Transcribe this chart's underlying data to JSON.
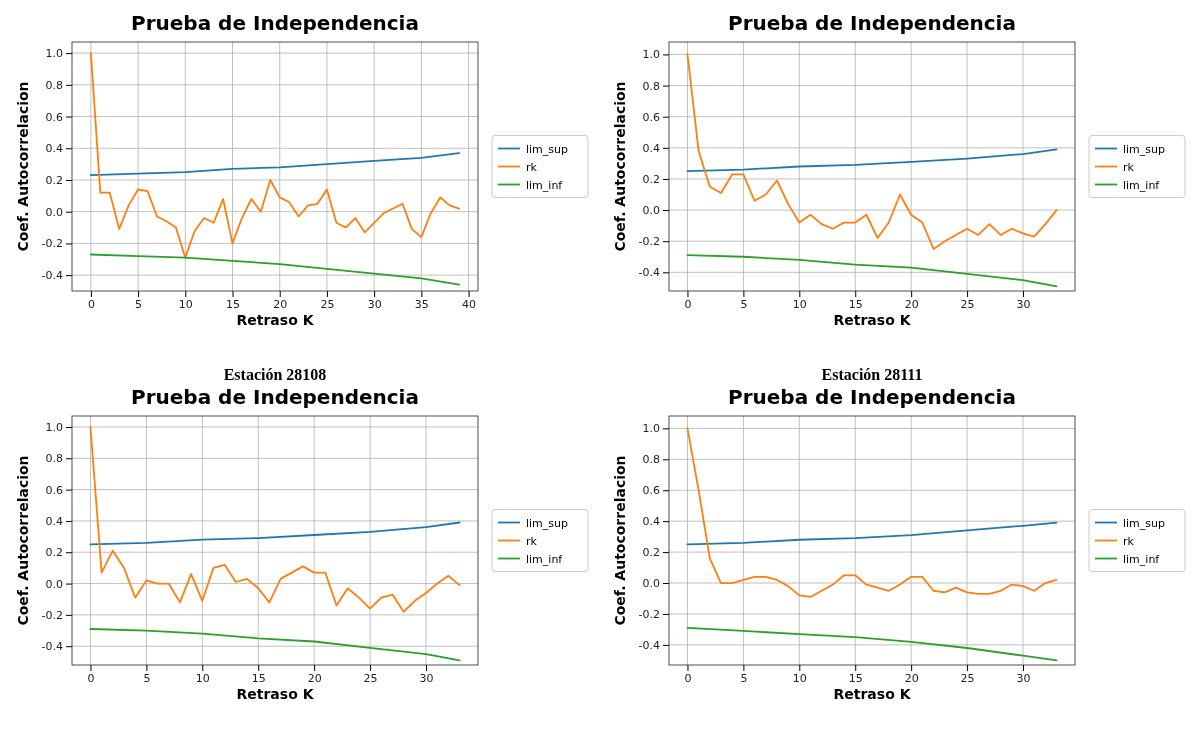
{
  "chart_data": [
    {
      "type": "line",
      "title": "Prueba de Independencia",
      "xlabel": "Retraso K",
      "ylabel": "Coef. Autocorrelacion",
      "xlim": [
        -2,
        41
      ],
      "xticks": [
        0,
        5,
        10,
        15,
        20,
        25,
        30,
        35,
        40
      ],
      "ylim": [
        -0.5,
        1.07
      ],
      "yticks": [
        {
          "value": -0.4,
          "label": "-0.4"
        },
        {
          "value": -0.2,
          "label": "-0.2"
        },
        {
          "value": 0,
          "label": "0.0"
        },
        {
          "value": 0.2,
          "label": "0.2"
        },
        {
          "value": 0.4,
          "label": "0.4"
        },
        {
          "value": 0.6,
          "label": "0.6"
        },
        {
          "value": 0.8,
          "label": "0.8"
        },
        {
          "value": 1,
          "label": "1.0"
        }
      ],
      "grid": true,
      "legend": "right",
      "line_style": "solid",
      "marker": "none",
      "series": [
        {
          "name": "lim_sup",
          "color": "#1f77b4",
          "x": [
            0,
            5,
            10,
            15,
            20,
            25,
            30,
            35,
            39
          ],
          "values": [
            0.23,
            0.24,
            0.25,
            0.27,
            0.28,
            0.3,
            0.32,
            0.34,
            0.37
          ]
        },
        {
          "name": "rk",
          "color": "#ff7f0e",
          "x": [
            0,
            1,
            2,
            3,
            4,
            5,
            6,
            7,
            8,
            9,
            10,
            11,
            12,
            13,
            14,
            15,
            16,
            17,
            18,
            19,
            20,
            21,
            22,
            23,
            24,
            25,
            26,
            27,
            28,
            29,
            30,
            31,
            32,
            33,
            34,
            35,
            36,
            37,
            38,
            39
          ],
          "values": [
            1.0,
            0.12,
            0.12,
            -0.11,
            0.04,
            0.14,
            0.13,
            -0.03,
            -0.06,
            -0.1,
            -0.29,
            -0.12,
            -0.04,
            -0.07,
            0.08,
            -0.2,
            -0.04,
            0.08,
            0.0,
            0.2,
            0.09,
            0.06,
            -0.03,
            0.04,
            0.05,
            0.14,
            -0.07,
            -0.1,
            -0.04,
            -0.13,
            -0.07,
            -0.01,
            0.02,
            0.05,
            -0.11,
            -0.16,
            -0.01,
            0.09,
            0.04,
            0.02
          ]
        },
        {
          "name": "lim_inf",
          "color": "#2ca02c",
          "x": [
            0,
            5,
            10,
            15,
            20,
            25,
            30,
            35,
            39
          ],
          "values": [
            -0.27,
            -0.28,
            -0.29,
            -0.31,
            -0.33,
            -0.36,
            -0.39,
            -0.42,
            -0.46
          ]
        }
      ]
    },
    {
      "type": "line",
      "title": "Prueba de Independencia",
      "xlabel": "Retraso K",
      "ylabel": "Coef. Autocorrelacion",
      "xlim": [
        -1.65,
        34.65
      ],
      "xticks": [
        0,
        5,
        10,
        15,
        20,
        25,
        30
      ],
      "ylim": [
        -0.52,
        1.08
      ],
      "yticks": [
        {
          "value": -0.4,
          "label": "-0.4"
        },
        {
          "value": -0.2,
          "label": "-0.2"
        },
        {
          "value": 0,
          "label": "0.0"
        },
        {
          "value": 0.2,
          "label": "0.2"
        },
        {
          "value": 0.4,
          "label": "0.4"
        },
        {
          "value": 0.6,
          "label": "0.6"
        },
        {
          "value": 0.8,
          "label": "0.8"
        },
        {
          "value": 1,
          "label": "1.0"
        }
      ],
      "grid": true,
      "legend": "right",
      "line_style": "solid",
      "marker": "none",
      "series": [
        {
          "name": "lim_sup",
          "color": "#1f77b4",
          "x": [
            0,
            5,
            10,
            15,
            20,
            25,
            30,
            33
          ],
          "values": [
            0.25,
            0.26,
            0.28,
            0.29,
            0.31,
            0.33,
            0.36,
            0.39
          ]
        },
        {
          "name": "rk",
          "color": "#ff7f0e",
          "x": [
            0,
            1,
            2,
            3,
            4,
            5,
            6,
            7,
            8,
            9,
            10,
            11,
            12,
            13,
            14,
            15,
            16,
            17,
            18,
            19,
            20,
            21,
            22,
            23,
            24,
            25,
            26,
            27,
            28,
            29,
            30,
            31,
            32,
            33
          ],
          "values": [
            1.0,
            0.38,
            0.15,
            0.11,
            0.23,
            0.23,
            0.06,
            0.1,
            0.19,
            0.04,
            -0.08,
            -0.03,
            -0.09,
            -0.12,
            -0.08,
            -0.08,
            -0.03,
            -0.18,
            -0.08,
            0.1,
            -0.03,
            -0.08,
            -0.25,
            -0.2,
            -0.16,
            -0.12,
            -0.16,
            -0.09,
            -0.16,
            -0.12,
            -0.15,
            -0.17,
            -0.09,
            0.0
          ]
        },
        {
          "name": "lim_inf",
          "color": "#2ca02c",
          "x": [
            0,
            5,
            10,
            15,
            20,
            25,
            30,
            33
          ],
          "values": [
            -0.29,
            -0.3,
            -0.32,
            -0.35,
            -0.37,
            -0.41,
            -0.45,
            -0.49
          ]
        }
      ]
    },
    {
      "type": "line",
      "title": "Prueba de Independencia",
      "annotations": [
        "Estación 28108"
      ],
      "xlabel": "Retraso K",
      "ylabel": "Coef. Autocorrelacion",
      "xlim": [
        -1.65,
        34.65
      ],
      "xticks": [
        0,
        5,
        10,
        15,
        20,
        25,
        30
      ],
      "ylim": [
        -0.52,
        1.07
      ],
      "yticks": [
        {
          "value": -0.4,
          "label": "-0.4"
        },
        {
          "value": -0.2,
          "label": "-0.2"
        },
        {
          "value": 0,
          "label": "0.0"
        },
        {
          "value": 0.2,
          "label": "0.2"
        },
        {
          "value": 0.4,
          "label": "0.4"
        },
        {
          "value": 0.6,
          "label": "0.6"
        },
        {
          "value": 0.8,
          "label": "0.8"
        },
        {
          "value": 1,
          "label": "1.0"
        }
      ],
      "grid": true,
      "legend": "right",
      "line_style": "solid",
      "marker": "none",
      "series": [
        {
          "name": "lim_sup",
          "color": "#1f77b4",
          "x": [
            0,
            5,
            10,
            15,
            20,
            25,
            30,
            33
          ],
          "values": [
            0.25,
            0.26,
            0.28,
            0.29,
            0.31,
            0.33,
            0.36,
            0.39
          ]
        },
        {
          "name": "rk",
          "color": "#ff7f0e",
          "x": [
            0,
            1,
            2,
            3,
            4,
            5,
            6,
            7,
            8,
            9,
            10,
            11,
            12,
            13,
            14,
            15,
            16,
            17,
            18,
            19,
            20,
            21,
            22,
            23,
            24,
            25,
            26,
            27,
            28,
            29,
            30,
            31,
            32,
            33
          ],
          "values": [
            1.0,
            0.07,
            0.21,
            0.1,
            -0.09,
            0.02,
            0.0,
            0.0,
            -0.12,
            0.06,
            -0.11,
            0.1,
            0.12,
            0.01,
            0.03,
            -0.03,
            -0.12,
            0.03,
            0.07,
            0.11,
            0.07,
            0.07,
            -0.14,
            -0.03,
            -0.09,
            -0.16,
            -0.09,
            -0.07,
            -0.18,
            -0.11,
            -0.06,
            0.0,
            0.05,
            -0.01
          ]
        },
        {
          "name": "lim_inf",
          "color": "#2ca02c",
          "x": [
            0,
            5,
            10,
            15,
            20,
            25,
            30,
            33
          ],
          "values": [
            -0.29,
            -0.3,
            -0.32,
            -0.35,
            -0.37,
            -0.41,
            -0.45,
            -0.49
          ]
        }
      ]
    },
    {
      "type": "line",
      "title": "Prueba de Independencia",
      "annotations": [
        "Estación 28111"
      ],
      "xlabel": "Retraso K",
      "ylabel": "Coef. Autocorrelacion",
      "xlim": [
        -1.65,
        34.65
      ],
      "xticks": [
        0,
        5,
        10,
        15,
        20,
        25,
        30
      ],
      "ylim": [
        -0.53,
        1.08
      ],
      "yticks": [
        {
          "value": -0.4,
          "label": "-0.4"
        },
        {
          "value": -0.2,
          "label": "-0.2"
        },
        {
          "value": 0,
          "label": "0.0"
        },
        {
          "value": 0.2,
          "label": "0.2"
        },
        {
          "value": 0.4,
          "label": "0.4"
        },
        {
          "value": 0.6,
          "label": "0.6"
        },
        {
          "value": 0.8,
          "label": "0.8"
        },
        {
          "value": 1,
          "label": "1.0"
        }
      ],
      "grid": true,
      "legend": "right",
      "line_style": "solid",
      "marker": "none",
      "series": [
        {
          "name": "lim_sup",
          "color": "#1f77b4",
          "x": [
            0,
            5,
            10,
            15,
            20,
            25,
            30,
            33
          ],
          "values": [
            0.25,
            0.26,
            0.28,
            0.29,
            0.31,
            0.34,
            0.37,
            0.39
          ]
        },
        {
          "name": "rk",
          "color": "#ff7f0e",
          "x": [
            0,
            1,
            2,
            3,
            4,
            5,
            6,
            7,
            8,
            9,
            10,
            11,
            12,
            13,
            14,
            15,
            16,
            17,
            18,
            19,
            20,
            21,
            22,
            23,
            24,
            25,
            26,
            27,
            28,
            29,
            30,
            31,
            32,
            33
          ],
          "values": [
            1.0,
            0.6,
            0.16,
            0.0,
            0.0,
            0.02,
            0.04,
            0.04,
            0.02,
            -0.02,
            -0.08,
            -0.09,
            -0.05,
            -0.01,
            0.05,
            0.05,
            -0.01,
            -0.03,
            -0.05,
            -0.01,
            0.04,
            0.04,
            -0.05,
            -0.06,
            -0.03,
            -0.06,
            -0.07,
            -0.07,
            -0.05,
            -0.01,
            -0.02,
            -0.05,
            0.0,
            0.02
          ]
        },
        {
          "name": "lim_inf",
          "color": "#2ca02c",
          "x": [
            0,
            5,
            10,
            15,
            20,
            25,
            30,
            33
          ],
          "values": [
            -0.29,
            -0.31,
            -0.33,
            -0.35,
            -0.38,
            -0.42,
            -0.47,
            -0.5
          ]
        }
      ]
    }
  ]
}
